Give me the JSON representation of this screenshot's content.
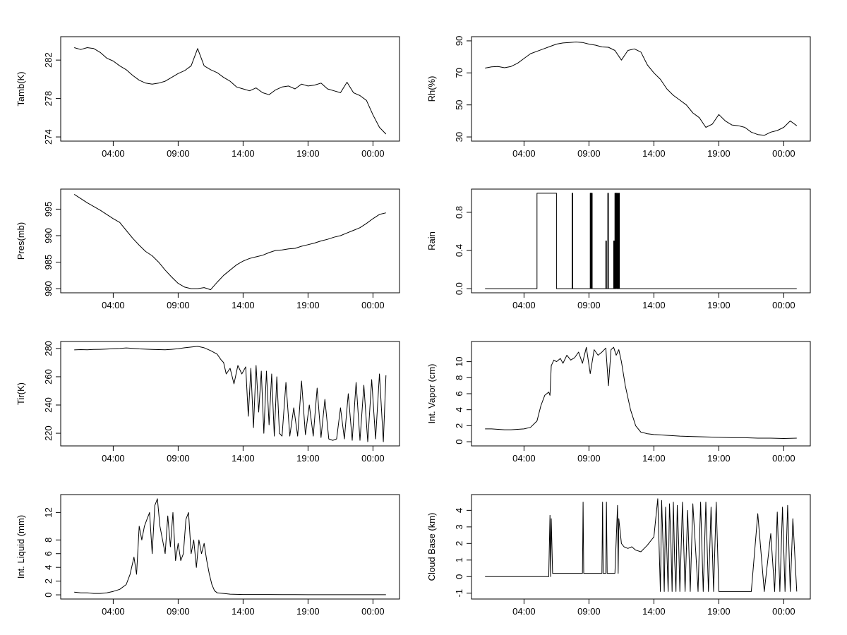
{
  "colors": {
    "line": "#000000",
    "background": "#ffffff"
  },
  "chart_data": [
    {
      "type": "line",
      "title": "",
      "xlabel": "",
      "ylabel": "Tamb(K)",
      "xlim": [
        0,
        24
      ],
      "ylim": [
        274,
        284
      ],
      "xticks": [
        3,
        8,
        13,
        18,
        23
      ],
      "xtick_labels": [
        "04:00",
        "09:00",
        "14:00",
        "19:00",
        "00:00"
      ],
      "yticks": [
        274,
        278,
        282
      ],
      "ytick_labels": [
        "274",
        "278",
        "282"
      ],
      "x": [
        0,
        0.5,
        1,
        1.5,
        2,
        2.5,
        3,
        3.5,
        4,
        4.5,
        5,
        5.5,
        6,
        6.5,
        7,
        7.5,
        8,
        8.5,
        9,
        9.5,
        10,
        10.5,
        11,
        11.5,
        12,
        12.5,
        13,
        13.5,
        14,
        14.5,
        15,
        15.5,
        16,
        16.5,
        17,
        17.5,
        18,
        18.5,
        19,
        19.5,
        20,
        20.5,
        21,
        21.5,
        22,
        22.5,
        23,
        23.5,
        24
      ],
      "y": [
        283.3,
        283.1,
        283.3,
        283.2,
        282.8,
        282.2,
        281.9,
        281.4,
        281.0,
        280.4,
        279.9,
        279.6,
        279.5,
        279.6,
        279.8,
        280.2,
        280.6,
        280.9,
        281.4,
        283.2,
        281.4,
        281.0,
        280.7,
        280.2,
        279.8,
        279.2,
        279.0,
        278.8,
        279.1,
        278.6,
        278.4,
        278.9,
        279.2,
        279.3,
        279.0,
        279.5,
        279.3,
        279.4,
        279.6,
        279.0,
        278.8,
        278.6,
        279.7,
        278.6,
        278.3,
        277.8,
        276.3,
        275.0,
        274.3
      ]
    },
    {
      "type": "line",
      "title": "",
      "xlabel": "",
      "ylabel": "Rh(%)",
      "xlim": [
        0,
        24
      ],
      "ylim": [
        30,
        90
      ],
      "xticks": [
        3,
        8,
        13,
        18,
        23
      ],
      "xtick_labels": [
        "04:00",
        "09:00",
        "14:00",
        "19:00",
        "00:00"
      ],
      "yticks": [
        30,
        50,
        70,
        90
      ],
      "ytick_labels": [
        "30",
        "50",
        "70",
        "90"
      ],
      "x": [
        0,
        0.5,
        1,
        1.5,
        2,
        2.5,
        3,
        3.5,
        4,
        4.5,
        5,
        5.5,
        6,
        6.5,
        7,
        7.5,
        8,
        8.5,
        9,
        9.5,
        10,
        10.5,
        11,
        11.5,
        12,
        12.5,
        13,
        13.5,
        14,
        14.5,
        15,
        15.5,
        16,
        16.5,
        17,
        17.5,
        18,
        18.5,
        19,
        19.5,
        20,
        20.5,
        21,
        21.5,
        22,
        22.5,
        23,
        23.5,
        24
      ],
      "y": [
        73,
        73.8,
        74,
        73.2,
        74,
        76,
        79,
        82,
        83.5,
        85,
        86.5,
        88,
        88.7,
        89,
        89.3,
        89,
        88,
        87.3,
        86.2,
        86,
        84,
        78,
        84,
        85,
        83,
        75,
        70,
        66,
        60,
        56,
        53,
        50,
        45,
        42,
        36,
        38,
        44,
        40,
        37.5,
        37,
        36,
        33,
        31.5,
        31,
        33,
        34,
        36,
        40,
        37
      ]
    },
    {
      "type": "line",
      "title": "",
      "xlabel": "",
      "ylabel": "Pres(mb)",
      "xlim": [
        0,
        24
      ],
      "ylim": [
        980,
        998
      ],
      "xticks": [
        3,
        8,
        13,
        18,
        23
      ],
      "xtick_labels": [
        "04:00",
        "09:00",
        "14:00",
        "19:00",
        "00:00"
      ],
      "yticks": [
        980,
        985,
        990,
        995
      ],
      "ytick_labels": [
        "980",
        "985",
        "990",
        "995"
      ],
      "x": [
        0,
        0.5,
        1,
        1.5,
        2,
        2.5,
        3,
        3.5,
        4,
        4.5,
        5,
        5.5,
        6,
        6.5,
        7,
        7.5,
        8,
        8.5,
        9,
        9.5,
        10,
        10.5,
        11,
        11.5,
        12,
        12.5,
        13,
        13.5,
        14,
        14.5,
        15,
        15.5,
        16,
        16.5,
        17,
        17.5,
        18,
        18.5,
        19,
        19.5,
        20,
        20.5,
        21,
        21.5,
        22,
        22.5,
        23,
        23.5,
        24
      ],
      "y": [
        997.8,
        997.0,
        996.2,
        995.5,
        994.8,
        994.0,
        993.2,
        992.5,
        991.0,
        989.5,
        988.2,
        987.0,
        986.2,
        985.0,
        983.5,
        982.2,
        981.0,
        980.3,
        980.0,
        980.0,
        980.2,
        979.8,
        981.2,
        982.5,
        983.5,
        984.5,
        985.2,
        985.7,
        986.0,
        986.3,
        986.8,
        987.2,
        987.3,
        987.5,
        987.6,
        988.0,
        988.3,
        988.6,
        989.0,
        989.3,
        989.7,
        990.0,
        990.5,
        991.0,
        991.5,
        992.3,
        993.2,
        994.0,
        994.3
      ]
    },
    {
      "type": "line",
      "title": "",
      "xlabel": "",
      "ylabel": "Rain",
      "xlim": [
        0,
        24
      ],
      "ylim": [
        0,
        1
      ],
      "xticks": [
        3,
        8,
        13,
        18,
        23
      ],
      "xtick_labels": [
        "04:00",
        "09:00",
        "14:00",
        "19:00",
        "00:00"
      ],
      "yticks": [
        0,
        0.4,
        0.8
      ],
      "ytick_labels": [
        "0.0",
        "0.4",
        "0.8"
      ],
      "x": [
        0,
        4.0,
        4.0,
        5.5,
        5.5,
        6.7,
        6.7,
        6.75,
        6.75,
        8.1,
        8.1,
        8.15,
        8.15,
        8.2,
        8.2,
        8.25,
        8.25,
        9.3,
        9.3,
        9.35,
        9.35,
        9.45,
        9.45,
        9.5,
        9.5,
        9.9,
        9.9,
        9.95,
        9.95,
        10.0,
        10.0,
        10.05,
        10.05,
        10.1,
        10.1,
        10.15,
        10.15,
        10.2,
        10.2,
        10.25,
        10.25,
        10.3,
        10.3,
        10.35,
        10.35,
        24
      ],
      "y": [
        0,
        0,
        1,
        1,
        0,
        0,
        1,
        1,
        0,
        0,
        1,
        1,
        0,
        0,
        1,
        1,
        0,
        0,
        0.5,
        0.5,
        0,
        0,
        1,
        1,
        0,
        0,
        0.5,
        0.5,
        0,
        0,
        1,
        1,
        0,
        0,
        1,
        1,
        0,
        0,
        1,
        1,
        0,
        0,
        1,
        1,
        0,
        0
      ]
    },
    {
      "type": "line",
      "title": "",
      "xlabel": "",
      "ylabel": "Tir(K)",
      "xlim": [
        0,
        24
      ],
      "ylim": [
        214,
        282
      ],
      "xticks": [
        3,
        8,
        13,
        18,
        23
      ],
      "xtick_labels": [
        "04:00",
        "09:00",
        "14:00",
        "19:00",
        "00:00"
      ],
      "yticks": [
        220,
        240,
        260,
        280
      ],
      "ytick_labels": [
        "220",
        "240",
        "260",
        "280"
      ],
      "x": [
        0,
        0.5,
        1,
        1.5,
        2,
        2.5,
        3,
        3.5,
        4,
        4.5,
        5,
        5.5,
        6,
        6.5,
        7,
        7.5,
        8,
        8.5,
        9,
        9.5,
        10,
        10.5,
        11,
        11.3,
        11.5,
        11.7,
        12,
        12.3,
        12.6,
        12.9,
        13.2,
        13.4,
        13.6,
        13.8,
        14.0,
        14.2,
        14.4,
        14.6,
        14.8,
        15.0,
        15.2,
        15.4,
        15.6,
        15.8,
        16.0,
        16.3,
        16.6,
        16.9,
        17.2,
        17.5,
        17.8,
        18.1,
        18.4,
        18.7,
        19.0,
        19.3,
        19.6,
        19.9,
        20.2,
        20.5,
        20.8,
        21.1,
        21.4,
        21.7,
        22.0,
        22.3,
        22.6,
        22.9,
        23.2,
        23.5,
        23.8,
        24
      ],
      "y": [
        279,
        279.2,
        279.1,
        279.3,
        279.4,
        279.6,
        279.8,
        280,
        280.4,
        280.1,
        279.7,
        279.5,
        279.3,
        279.2,
        279.1,
        279.4,
        279.8,
        280.5,
        281,
        281.5,
        280.5,
        278.5,
        276,
        272,
        270,
        262,
        266,
        255,
        268,
        262,
        267,
        232,
        266,
        224,
        268,
        235,
        264,
        220,
        264,
        226,
        262,
        218,
        260,
        220,
        218,
        256,
        218,
        238,
        218,
        257,
        219,
        240,
        218,
        252,
        217,
        244,
        216,
        215,
        216,
        238,
        216,
        248,
        215,
        256,
        215,
        254,
        214,
        258,
        216,
        262,
        214,
        261
      ]
    },
    {
      "type": "line",
      "title": "",
      "xlabel": "",
      "ylabel": "Int. Vapor (cm)",
      "xlim": [
        0,
        24
      ],
      "ylim": [
        0,
        12
      ],
      "xticks": [
        3,
        8,
        13,
        18,
        23
      ],
      "xtick_labels": [
        "04:00",
        "09:00",
        "14:00",
        "19:00",
        "00:00"
      ],
      "yticks": [
        0,
        2,
        4,
        6,
        8,
        10
      ],
      "ytick_labels": [
        "0",
        "2",
        "4",
        "6",
        "8",
        "10"
      ],
      "x": [
        0,
        0.5,
        1,
        1.5,
        2,
        2.5,
        3,
        3.5,
        4,
        4.3,
        4.6,
        4.9,
        5.0,
        5.1,
        5.3,
        5.5,
        5.8,
        6.0,
        6.3,
        6.6,
        6.9,
        7.2,
        7.5,
        7.8,
        8.1,
        8.4,
        8.7,
        9.0,
        9.3,
        9.5,
        9.7,
        9.9,
        10.1,
        10.3,
        10.5,
        10.8,
        11.2,
        11.6,
        12.0,
        12.5,
        13,
        13.5,
        14,
        15,
        16,
        17,
        18,
        19,
        20,
        21,
        22,
        23,
        24
      ],
      "y": [
        1.6,
        1.6,
        1.55,
        1.5,
        1.5,
        1.55,
        1.6,
        1.8,
        2.6,
        4.5,
        5.8,
        6.2,
        5.8,
        9.5,
        10.2,
        10,
        10.4,
        9.8,
        10.8,
        10.2,
        10.5,
        11.2,
        9.8,
        11.8,
        8.5,
        11.5,
        10.8,
        11.2,
        11.7,
        7.0,
        11.5,
        11.8,
        10.8,
        11.5,
        10,
        7,
        4,
        2,
        1.2,
        1.0,
        0.9,
        0.85,
        0.8,
        0.7,
        0.65,
        0.6,
        0.55,
        0.5,
        0.5,
        0.45,
        0.45,
        0.4,
        0.45
      ]
    },
    {
      "type": "line",
      "title": "",
      "xlabel": "",
      "ylabel": "Int. Liquid (mm)",
      "xlim": [
        0,
        24
      ],
      "ylim": [
        0,
        14
      ],
      "xticks": [
        3,
        8,
        13,
        18,
        23
      ],
      "xtick_labels": [
        "04:00",
        "09:00",
        "14:00",
        "19:00",
        "00:00"
      ],
      "yticks": [
        0,
        2,
        4,
        6,
        8,
        12
      ],
      "ytick_labels": [
        "0",
        "2",
        "4",
        "6",
        "8",
        "12"
      ],
      "x": [
        0,
        0.5,
        1,
        1.5,
        2,
        2.5,
        3,
        3.5,
        4,
        4.3,
        4.6,
        4.8,
        5.0,
        5.2,
        5.4,
        5.6,
        5.8,
        6.0,
        6.2,
        6.4,
        6.6,
        6.8,
        7.0,
        7.2,
        7.4,
        7.6,
        7.8,
        8.0,
        8.2,
        8.4,
        8.6,
        8.8,
        9.0,
        9.2,
        9.4,
        9.6,
        9.8,
        10.0,
        10.2,
        10.4,
        10.6,
        10.8,
        11.0,
        11.5,
        12,
        13,
        14,
        15,
        16,
        17,
        18,
        19,
        20,
        21,
        22,
        23,
        24
      ],
      "y": [
        0.4,
        0.3,
        0.3,
        0.2,
        0.2,
        0.3,
        0.5,
        0.8,
        1.5,
        3,
        5.5,
        3,
        10,
        8,
        10,
        11,
        12,
        6,
        13,
        14,
        10,
        8,
        6,
        11.5,
        7,
        12,
        5,
        7.5,
        5,
        6,
        11,
        12,
        6,
        8,
        4,
        8,
        6,
        7.5,
        5,
        3,
        1.5,
        0.6,
        0.3,
        0.2,
        0.1,
        0.05,
        0.05,
        0.05,
        0.03,
        0.03,
        0.02,
        0.02,
        0.02,
        0.02,
        0.02,
        0.02,
        0.02
      ]
    },
    {
      "type": "line",
      "title": "",
      "xlabel": "",
      "ylabel": "Cloud Base (km)",
      "xlim": [
        0,
        24
      ],
      "ylim": [
        -1.1,
        4.7
      ],
      "xticks": [
        3,
        8,
        13,
        18,
        23
      ],
      "xtick_labels": [
        "04:00",
        "09:00",
        "14:00",
        "19:00",
        "00:00"
      ],
      "yticks": [
        -1,
        0,
        1,
        2,
        3,
        4
      ],
      "ytick_labels": [
        "-1",
        "0",
        "1",
        "2",
        "3",
        "4"
      ],
      "x": [
        0,
        1,
        2,
        3,
        4,
        4.9,
        5.0,
        5.05,
        5.1,
        5.2,
        5.25,
        5.3,
        6,
        7,
        7.5,
        7.55,
        7.6,
        8.5,
        9.0,
        9.05,
        9.1,
        9.3,
        9.35,
        9.4,
        10.0,
        10.2,
        10.25,
        10.3,
        10.5,
        10.7,
        11.0,
        11.3,
        11.6,
        12.0,
        12.5,
        13.0,
        13.3,
        13.5,
        13.6,
        13.7,
        13.8,
        13.9,
        14.0,
        14.1,
        14.2,
        14.3,
        14.4,
        14.5,
        14.6,
        14.7,
        14.8,
        14.9,
        15.0,
        15.2,
        15.4,
        15.6,
        15.8,
        16.0,
        16.2,
        16.4,
        16.6,
        16.8,
        17.0,
        17.2,
        17.4,
        17.6,
        17.8,
        18.0,
        18.2,
        18.5,
        19.0,
        19.5,
        20.0,
        20.5,
        21.0,
        21.5,
        22.0,
        22.3,
        22.5,
        22.7,
        22.9,
        23.1,
        23.3,
        23.5,
        23.7,
        24
      ],
      "y": [
        0,
        0,
        0,
        0,
        0,
        0,
        3.7,
        0,
        3.5,
        0.2,
        0.2,
        0.2,
        0.2,
        0.2,
        0.2,
        4.5,
        0.2,
        0.2,
        0.2,
        4.5,
        0.2,
        0.2,
        4.5,
        0.2,
        0.2,
        4.3,
        0.2,
        3.5,
        2.0,
        1.8,
        1.7,
        1.8,
        1.6,
        1.5,
        1.9,
        2.4,
        4.7,
        -0.9,
        4.6,
        2,
        -0.9,
        4.2,
        1.5,
        -0.9,
        4.4,
        2.5,
        -0.9,
        4.5,
        1.0,
        -0.9,
        4.3,
        2.2,
        -0.9,
        4.5,
        -0.9,
        4.0,
        -0.9,
        4.4,
        1.8,
        -0.9,
        4.5,
        -0.9,
        4.5,
        -0.9,
        4.2,
        -0.9,
        4.5,
        -0.9,
        -0.9,
        -0.9,
        -0.9,
        -0.9,
        -0.9,
        -0.9,
        3.8,
        -0.9,
        2.6,
        -0.9,
        3.9,
        -0.9,
        4.2,
        -0.9,
        4.3,
        -0.9,
        3.5,
        -0.9
      ]
    }
  ]
}
